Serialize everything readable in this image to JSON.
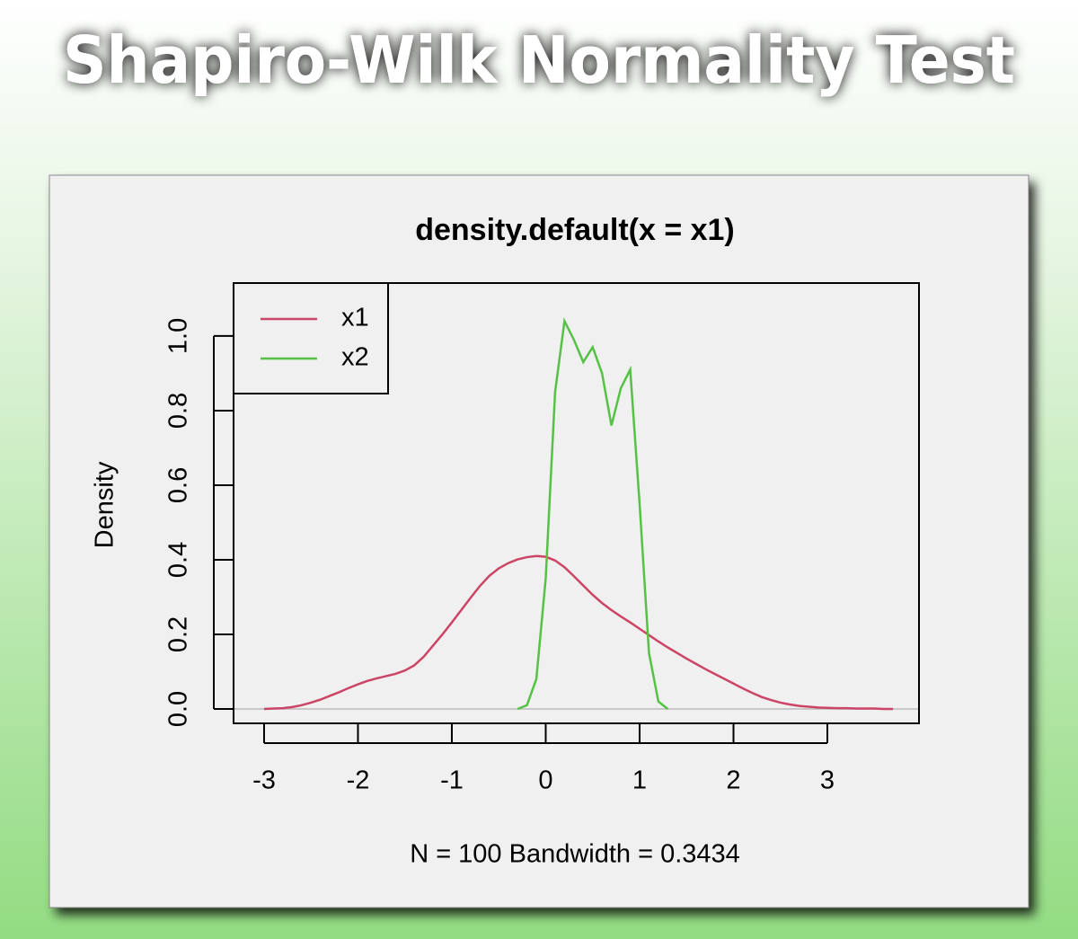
{
  "header": {
    "title": "Shapiro-Wilk Normality Test"
  },
  "chart_data": {
    "type": "line",
    "title": "density.default(x = x1)",
    "subtitle": "N = 100   Bandwidth = 0.3434",
    "ylabel": "Density",
    "x": [
      -3.0,
      -2.9,
      -2.8,
      -2.7,
      -2.6,
      -2.5,
      -2.4,
      -2.3,
      -2.2,
      -2.1,
      -2.0,
      -1.9,
      -1.8,
      -1.7,
      -1.6,
      -1.5,
      -1.4,
      -1.3,
      -1.2,
      -1.1,
      -1.0,
      -0.9,
      -0.8,
      -0.7,
      -0.6,
      -0.5,
      -0.4,
      -0.3,
      -0.2,
      -0.1,
      0.0,
      0.1,
      0.2,
      0.3,
      0.4,
      0.5,
      0.6,
      0.7,
      0.8,
      0.9,
      1.0,
      1.1,
      1.2,
      1.3,
      1.4,
      1.5,
      1.6,
      1.7,
      1.8,
      1.9,
      2.0,
      2.1,
      2.2,
      2.3,
      2.4,
      2.5,
      2.6,
      2.7,
      2.8,
      2.9,
      3.0,
      3.1,
      3.2,
      3.3,
      3.4,
      3.5,
      3.6,
      3.7
    ],
    "series": [
      {
        "name": "x1",
        "color": "#cc4466",
        "values": [
          0.0,
          0.001,
          0.002,
          0.005,
          0.01,
          0.017,
          0.025,
          0.035,
          0.045,
          0.056,
          0.066,
          0.075,
          0.082,
          0.088,
          0.094,
          0.103,
          0.117,
          0.14,
          0.17,
          0.2,
          0.232,
          0.265,
          0.298,
          0.33,
          0.357,
          0.377,
          0.391,
          0.401,
          0.407,
          0.41,
          0.408,
          0.398,
          0.38,
          0.356,
          0.331,
          0.306,
          0.284,
          0.265,
          0.248,
          0.232,
          0.215,
          0.198,
          0.181,
          0.165,
          0.15,
          0.135,
          0.121,
          0.107,
          0.094,
          0.081,
          0.068,
          0.055,
          0.043,
          0.032,
          0.024,
          0.017,
          0.012,
          0.008,
          0.006,
          0.004,
          0.003,
          0.002,
          0.002,
          0.001,
          0.001,
          0.001,
          0.0,
          0.0
        ]
      },
      {
        "name": "x2",
        "color": "#55c245",
        "values": [
          null,
          null,
          null,
          null,
          null,
          null,
          null,
          null,
          null,
          null,
          null,
          null,
          null,
          null,
          null,
          null,
          null,
          null,
          null,
          null,
          null,
          null,
          null,
          null,
          null,
          null,
          null,
          0.0,
          0.01,
          0.08,
          0.35,
          0.85,
          1.04,
          0.99,
          0.93,
          0.97,
          0.9,
          0.76,
          0.86,
          0.91,
          0.55,
          0.15,
          0.02,
          0.0,
          null,
          null,
          null,
          null,
          null,
          null,
          null,
          null,
          null,
          null,
          null,
          null,
          null,
          null,
          null,
          null,
          null,
          null,
          null,
          null,
          null,
          null,
          null,
          null
        ]
      }
    ],
    "xlim": [
      -3.325,
      3.976
    ],
    "ylim": [
      -0.0386,
      1.142
    ],
    "xticks": [
      -3,
      -2,
      -1,
      0,
      1,
      2,
      3
    ],
    "yticks": [
      {
        "value": 0,
        "label": "0.0"
      },
      0.2,
      0.4,
      0.6,
      0.8,
      {
        "value": 1,
        "label": "1.0"
      }
    ],
    "legend": "top-left",
    "zero_line": true
  }
}
